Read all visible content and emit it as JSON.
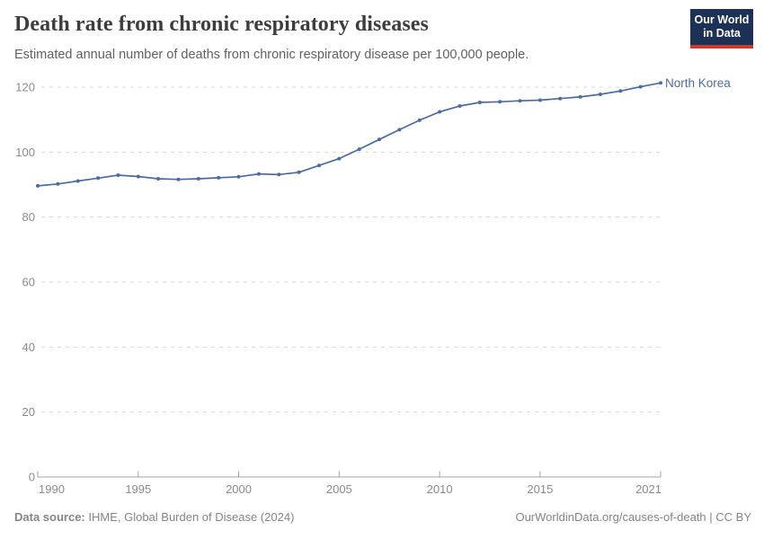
{
  "header": {
    "title": "Death rate from chronic respiratory diseases",
    "subtitle": "Estimated annual number of deaths from chronic respiratory disease per 100,000 people.",
    "logo": {
      "line1": "Our World",
      "line2": "in Data",
      "bg_color": "#1d3156",
      "stripe_color": "#d3362f"
    }
  },
  "chart_data": {
    "type": "line",
    "title": "Death rate from chronic respiratory diseases",
    "xlabel": "",
    "ylabel": "",
    "xlim": [
      1990,
      2021
    ],
    "ylim": [
      0,
      120
    ],
    "x_ticks": [
      1990,
      1995,
      2000,
      2005,
      2010,
      2015,
      2021
    ],
    "y_ticks": [
      0,
      20,
      40,
      60,
      80,
      100,
      120
    ],
    "grid": "horizontal-dashed",
    "legend_position": "end-of-line",
    "series": [
      {
        "name": "North Korea",
        "color": "#4c6ba0",
        "x": [
          1990,
          1991,
          1992,
          1993,
          1994,
          1995,
          1996,
          1997,
          1998,
          1999,
          2000,
          2001,
          2002,
          2003,
          2004,
          2005,
          2006,
          2007,
          2008,
          2009,
          2010,
          2011,
          2012,
          2013,
          2014,
          2015,
          2016,
          2017,
          2018,
          2019,
          2020,
          2021
        ],
        "values": [
          89.6,
          90.2,
          91.1,
          92.0,
          92.9,
          92.5,
          91.8,
          91.6,
          91.8,
          92.1,
          92.4,
          93.3,
          93.1,
          93.8,
          95.9,
          98.0,
          100.9,
          103.9,
          106.9,
          109.8,
          112.4,
          114.2,
          115.3,
          115.5,
          115.8,
          116.0,
          116.5,
          117.0,
          117.8,
          118.8,
          120.1,
          121.3
        ]
      }
    ],
    "axis_color": "#a5a5a5",
    "grid_color": "#dadada",
    "tick_label_color": "#8b8b8b"
  },
  "footer": {
    "source_label": "Data source:",
    "source_value": " IHME, Global Burden of Disease (2024)",
    "credit": "OurWorldinData.org/causes-of-death | CC BY"
  }
}
